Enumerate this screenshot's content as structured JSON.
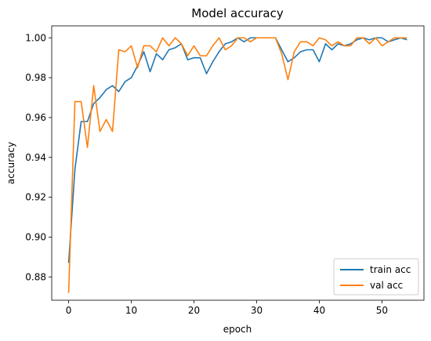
{
  "chart_data": {
    "type": "line",
    "title": "Model accuracy",
    "xlabel": "epoch",
    "ylabel": "accuracy",
    "xlim": [
      -2.7,
      56.7
    ],
    "ylim": [
      0.8683,
      1.006
    ],
    "xticks": [
      0,
      10,
      20,
      30,
      40,
      50
    ],
    "yticks": [
      0.88,
      0.9,
      0.92,
      0.94,
      0.96,
      0.98,
      1.0
    ],
    "ytick_labels": [
      "0.88",
      "0.90",
      "0.92",
      "0.94",
      "0.96",
      "0.98",
      "1.00"
    ],
    "grid": false,
    "legend_position": "lower right",
    "series": [
      {
        "name": "train acc",
        "color": "#1f77b4",
        "x": [
          0,
          1,
          2,
          3,
          4,
          5,
          6,
          7,
          8,
          9,
          10,
          11,
          12,
          13,
          14,
          15,
          16,
          17,
          18,
          19,
          20,
          21,
          22,
          23,
          24,
          25,
          26,
          27,
          28,
          29,
          30,
          31,
          32,
          33,
          34,
          35,
          36,
          37,
          38,
          39,
          40,
          41,
          42,
          43,
          44,
          45,
          46,
          47,
          48,
          49,
          50,
          51,
          52,
          53,
          54
        ],
        "values": [
          0.887,
          0.934,
          0.958,
          0.958,
          0.967,
          0.97,
          0.974,
          0.976,
          0.973,
          0.978,
          0.98,
          0.986,
          0.993,
          0.983,
          0.992,
          0.989,
          0.994,
          0.995,
          0.997,
          0.989,
          0.99,
          0.99,
          0.982,
          0.988,
          0.993,
          0.997,
          0.998,
          1.0,
          0.998,
          1.0,
          1.0,
          1.0,
          1.0,
          1.0,
          0.994,
          0.988,
          0.99,
          0.993,
          0.994,
          0.994,
          0.988,
          0.997,
          0.994,
          0.997,
          0.996,
          0.997,
          0.999,
          1.0,
          0.999,
          1.0,
          1.0,
          0.998,
          0.999,
          1.0,
          0.999
        ]
      },
      {
        "name": "val acc",
        "color": "#ff7f0e",
        "x": [
          0,
          1,
          2,
          3,
          4,
          5,
          6,
          7,
          8,
          9,
          10,
          11,
          12,
          13,
          14,
          15,
          16,
          17,
          18,
          19,
          20,
          21,
          22,
          23,
          24,
          25,
          26,
          27,
          28,
          29,
          30,
          31,
          32,
          33,
          34,
          35,
          36,
          37,
          38,
          39,
          40,
          41,
          42,
          43,
          44,
          45,
          46,
          47,
          48,
          49,
          50,
          51,
          52,
          53,
          54
        ],
        "values": [
          0.872,
          0.968,
          0.968,
          0.945,
          0.976,
          0.953,
          0.959,
          0.953,
          0.994,
          0.993,
          0.996,
          0.985,
          0.996,
          0.996,
          0.993,
          1.0,
          0.996,
          1.0,
          0.997,
          0.991,
          0.996,
          0.991,
          0.991,
          0.996,
          1.0,
          0.994,
          0.996,
          1.0,
          1.0,
          0.998,
          1.0,
          1.0,
          1.0,
          1.0,
          0.992,
          0.979,
          0.993,
          0.998,
          0.998,
          0.996,
          1.0,
          0.999,
          0.996,
          0.998,
          0.996,
          0.996,
          1.0,
          1.0,
          0.997,
          1.0,
          0.996,
          0.998,
          1.0,
          1.0,
          1.0
        ]
      }
    ]
  }
}
